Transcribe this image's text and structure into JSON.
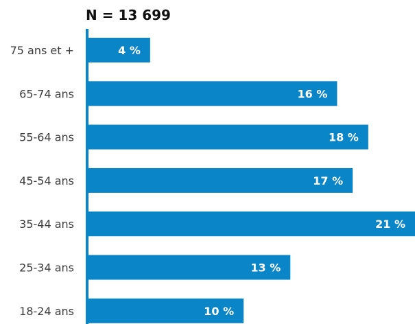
{
  "chart_data": {
    "type": "bar",
    "orientation": "horizontal",
    "title": "N = 13 699",
    "categories": [
      "75 ans et +",
      "65-74 ans",
      "55-64 ans",
      "45-54 ans",
      "35-44 ans",
      "25-34 ans",
      "18-24 ans"
    ],
    "values": [
      4,
      16,
      18,
      17,
      21,
      13,
      10
    ],
    "value_labels": [
      "4 %",
      "16 %",
      "18 %",
      "17 %",
      "21 %",
      "13 %",
      "10 %"
    ],
    "unit": "%",
    "xlim": [
      0,
      21
    ],
    "grid": false,
    "legend": "none",
    "colors": {
      "bar": "#0a86c8",
      "axis": "#0a86c8",
      "value_text": "#ffffff",
      "category_text": "#3a3a3a",
      "title_text": "#111111"
    }
  }
}
